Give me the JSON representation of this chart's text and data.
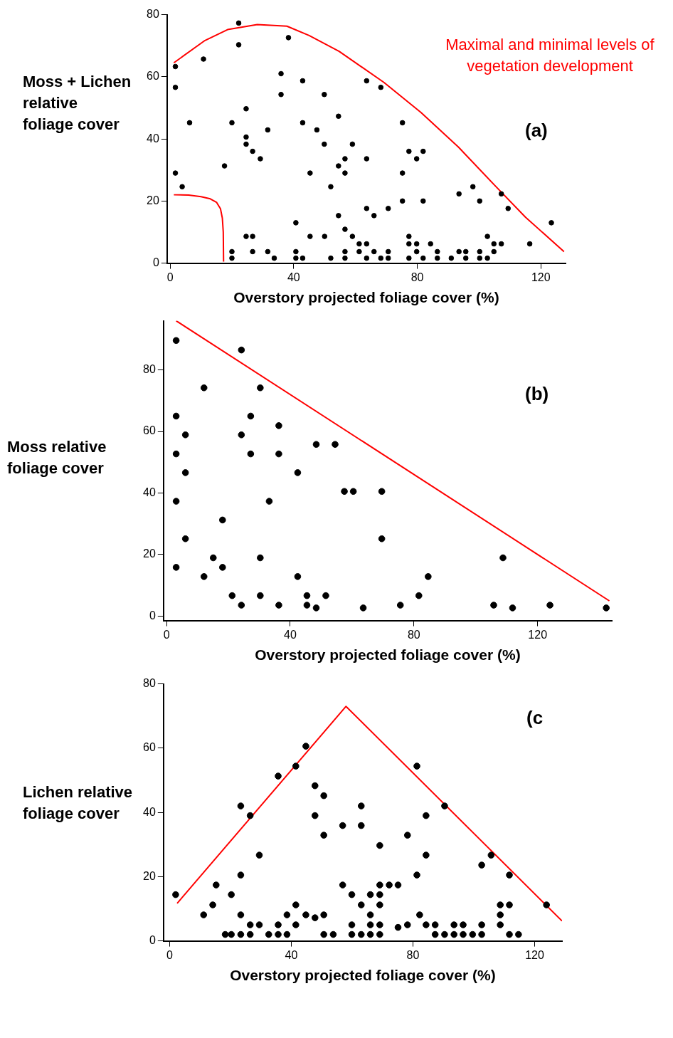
{
  "chart_data": [
    {
      "type": "scatter",
      "title": "(a)",
      "xlabel": "Overstory projected foliage cover (%)",
      "ylabel": "Moss + Lichen\nrelative\nfoliage cover",
      "xlim": [
        -1,
        128
      ],
      "xticks": [
        0,
        40,
        80,
        120
      ],
      "ylim": [
        0,
        80
      ],
      "yticks": [
        0,
        20,
        40,
        60,
        80
      ],
      "marker": "circle",
      "annotations": [
        "Maximal and minimal levels of\nvegetation development"
      ],
      "series": [
        {
          "type": "scatter",
          "color": "#000000",
          "x": [
            1.7,
            1.7,
            10.8,
            22.2,
            22.2,
            38.3,
            35.9,
            35.9,
            42.9,
            49.9,
            54.5,
            24.6,
            6.3,
            20,
            42.9,
            31.6,
            47.5,
            24.6,
            24.6,
            49.9,
            59,
            26.7,
            29.2,
            56.6,
            54.5,
            17.6,
            1.7,
            45.3,
            56.6,
            3.9,
            52,
            63.6,
            68.2,
            75.2,
            77.3,
            79.8,
            81.9,
            75.2,
            63.6,
            40.7,
            54.5,
            56.6,
            63.6,
            66,
            70.6,
            75.2,
            81.9,
            93.5,
            98,
            100.2,
            107.2,
            109.4,
            123.4,
            24.6,
            26.7,
            45.3,
            50,
            59,
            77.3,
            102.7,
            61.2,
            63.6,
            77.3,
            79.8,
            84.3,
            104.8,
            107.2,
            116.4,
            20,
            26.7,
            31.6,
            40.7,
            56.6,
            61.2,
            66,
            70.6,
            79.8,
            86.5,
            93.5,
            95.7,
            100.2,
            104.8,
            20,
            33.7,
            40.7,
            42.9,
            52,
            56.6,
            63.6,
            68.2,
            70.6,
            77.3,
            81.9,
            86.5,
            91,
            95.7,
            100.2,
            102.7
          ],
          "values": [
            63.3,
            56.6,
            65.7,
            77.3,
            70.3,
            72.6,
            61,
            54.3,
            58.7,
            54.3,
            47.3,
            49.7,
            45.2,
            45.2,
            45.2,
            42.9,
            42.9,
            40.6,
            38.3,
            38.3,
            38.3,
            36,
            33.6,
            33.6,
            31.3,
            31.3,
            29,
            29,
            29,
            24.6,
            24.6,
            58.7,
            56.6,
            45.2,
            36,
            33.6,
            36,
            29,
            33.6,
            13,
            15.3,
            10.9,
            17.6,
            15.3,
            17.6,
            20,
            20,
            22.3,
            24.6,
            20,
            22.3,
            17.6,
            13,
            8.6,
            8.6,
            8.6,
            8.6,
            8.6,
            8.6,
            8.6,
            6.2,
            6.2,
            6.2,
            6.2,
            6.2,
            6.2,
            6.2,
            6.2,
            3.7,
            3.7,
            3.7,
            3.7,
            3.7,
            3.7,
            3.7,
            3.7,
            3.7,
            3.7,
            3.7,
            3.7,
            3.7,
            3.7,
            1.6,
            1.6,
            1.6,
            1.6,
            1.6,
            1.6,
            1.6,
            1.6,
            1.6,
            1.6,
            1.6,
            1.6,
            1.6,
            1.6,
            1.6,
            1.6
          ]
        },
        {
          "type": "line",
          "color": "#ff0000",
          "marker": "none",
          "x": [
            1.2,
            11.3,
            18.6,
            28.2,
            37.8,
            45,
            54.7,
            69.2,
            81.2,
            93.3,
            105.3,
            115,
            127.5
          ],
          "values": [
            64.5,
            71.7,
            75.2,
            76.8,
            76.3,
            73.3,
            68.2,
            58.2,
            48.5,
            37.4,
            24.8,
            14.8,
            3.7
          ]
        },
        {
          "type": "line",
          "color": "#ff0000",
          "marker": "none",
          "x": [
            1.2,
            6,
            10,
            13,
            15,
            16.3,
            16.9,
            17.2,
            17.3
          ],
          "values": [
            22,
            21.9,
            21.4,
            20.7,
            19.6,
            17.5,
            14.5,
            10,
            0.5
          ]
        }
      ]
    },
    {
      "type": "scatter",
      "title": "(b)",
      "xlabel": "Overstory projected foliage cover (%)",
      "ylabel": "Moss relative\nfoliage cover",
      "xlim": [
        -1,
        144
      ],
      "xticks": [
        0,
        40,
        80,
        120
      ],
      "ylim": [
        -1.5,
        96
      ],
      "yticks": [
        0,
        20,
        40,
        60,
        80
      ],
      "marker": "circle",
      "series": [
        {
          "type": "scatter",
          "color": "#000000",
          "x": [
            3.1,
            24.2,
            12.1,
            30.3,
            3.1,
            27.2,
            36.3,
            6.1,
            24.2,
            48.4,
            54.5,
            3.1,
            27.2,
            36.3,
            6.1,
            42.4,
            57.5,
            60.4,
            69.6,
            3.1,
            33.2,
            18.1,
            6.1,
            69.6,
            15.1,
            30.3,
            108.8,
            3.1,
            18.1,
            12.1,
            42.4,
            84.6,
            21.2,
            30.3,
            45.4,
            51.5,
            81.6,
            24.2,
            36.3,
            45.4,
            75.6,
            105.8,
            124,
            48.4,
            63.6,
            111.9,
            142.2
          ],
          "values": [
            89.6,
            86.5,
            74.2,
            74.2,
            65,
            65,
            61.9,
            58.9,
            58.9,
            55.8,
            55.8,
            52.7,
            52.7,
            52.7,
            46.6,
            46.6,
            40.5,
            40.5,
            40.5,
            37.3,
            37.3,
            31.2,
            25.1,
            25.1,
            18.9,
            18.9,
            18.9,
            15.8,
            15.8,
            12.8,
            12.8,
            12.8,
            6.6,
            6.6,
            6.6,
            6.6,
            6.6,
            3.5,
            3.5,
            3.5,
            3.5,
            3.5,
            3.5,
            2.6,
            2.6,
            2.6,
            2.6
          ]
        },
        {
          "type": "line",
          "color": "#ff0000",
          "marker": "none",
          "x": [
            3.1,
            143.2
          ],
          "values": [
            96,
            4.9
          ]
        }
      ]
    },
    {
      "type": "scatter",
      "title": "(c",
      "xlabel": "Overstory projected foliage cover (%)",
      "ylabel": "Lichen relative\nfoliage cover",
      "xlim": [
        -2,
        129
      ],
      "xticks": [
        0,
        40,
        80,
        120
      ],
      "ylim": [
        0,
        80
      ],
      "yticks": [
        0,
        20,
        40,
        60,
        80
      ],
      "marker": "circle",
      "series": [
        {
          "type": "scatter",
          "color": "#000000",
          "x": [
            2.0,
            11.2,
            14.2,
            15.3,
            20.3,
            23.4,
            23.4,
            23.4,
            26.5,
            26.5,
            29.5,
            29.5,
            18.3,
            20.3,
            23.4,
            26.5,
            32.6,
            35.7,
            38.6,
            35.7,
            38.6,
            41.5,
            41.5,
            44.8,
            47.8,
            50.7,
            50.7,
            53.8,
            35.7,
            41.5,
            44.8,
            47.8,
            50.7,
            47.8,
            50.7,
            56.9,
            56.9,
            59.9,
            59.9,
            59.9,
            63,
            63,
            63,
            63,
            66,
            66,
            66,
            66,
            69.1,
            69.1,
            69.1,
            69.1,
            69.1,
            69.1,
            72.2,
            75.1,
            75.1,
            78.2,
            78.2,
            81.3,
            81.3,
            82.2,
            84.3,
            84.3,
            84.3,
            87.3,
            87.3,
            90.4,
            90.4,
            93.5,
            93.5,
            96.5,
            96.5,
            99.6,
            102.6,
            102.6,
            102.6,
            105.7,
            108.7,
            108.7,
            108.7,
            111.7,
            111.7,
            111.7,
            114.7,
            123.9
          ],
          "values": [
            14.4,
            8.1,
            11.2,
            17.4,
            14.4,
            8.1,
            20.5,
            42,
            39,
            5,
            5,
            26.7,
            2,
            2,
            2,
            2,
            2,
            2,
            2,
            5,
            8.1,
            5,
            11.2,
            8.1,
            7.2,
            8.1,
            2,
            2,
            51.3,
            54.4,
            60.6,
            48.3,
            45.2,
            39,
            32.9,
            35.9,
            17.4,
            14.4,
            5,
            2,
            2,
            35.9,
            42,
            11.2,
            14.4,
            8.1,
            5,
            2,
            29.7,
            17.4,
            14.4,
            11.2,
            5,
            2,
            17.4,
            17.4,
            4.2,
            32.9,
            5,
            54.4,
            20.5,
            8.1,
            39,
            26.7,
            5,
            5,
            2,
            42,
            2,
            5,
            2,
            5,
            2,
            2,
            5,
            2,
            23.6,
            26.7,
            11.2,
            8.1,
            5,
            20.5,
            11.2,
            2,
            2,
            11.2
          ]
        },
        {
          "type": "line",
          "color": "#ff0000",
          "marker": "none",
          "x": [
            2.5,
            58,
            129
          ],
          "values": [
            11.7,
            73,
            6.2
          ]
        }
      ]
    }
  ]
}
